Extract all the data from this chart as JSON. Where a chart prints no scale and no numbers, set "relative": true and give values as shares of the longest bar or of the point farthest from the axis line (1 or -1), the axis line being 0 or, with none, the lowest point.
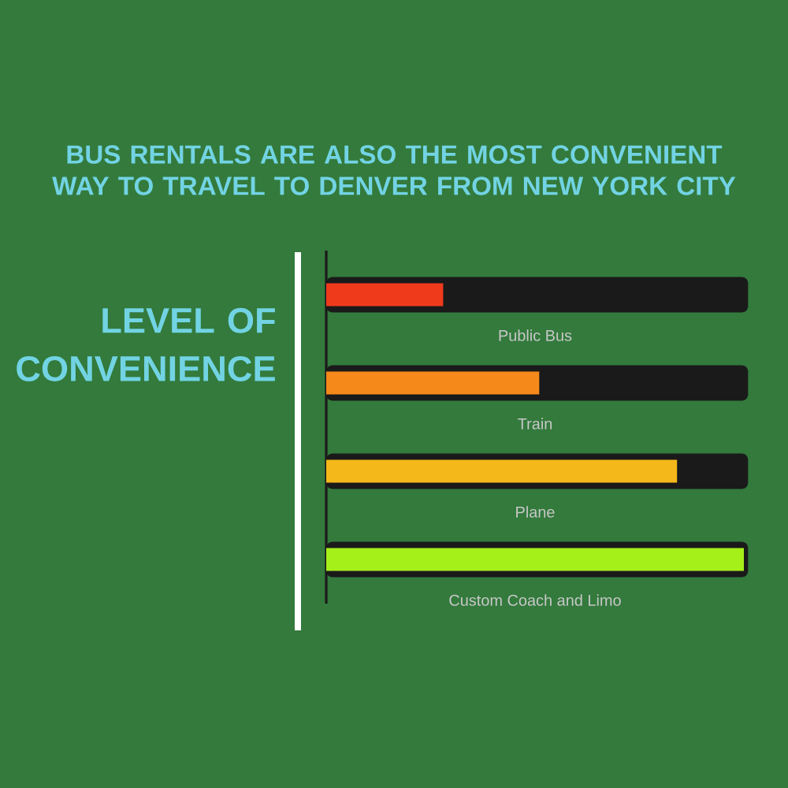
{
  "chart_data": {
    "type": "bar",
    "orientation": "horizontal",
    "relative": true,
    "title": "BUS RENTALS ARE ALSO THE MOST CONVENIENT WAY TO TRAVEL TO DENVER FROM NEW YORK CITY",
    "ylabel": "LEVEL OF CONVENIENCE",
    "categories": [
      "Public Bus",
      "Train",
      "Plane",
      "Custom Coach and Limo"
    ],
    "values": [
      0.28,
      0.51,
      0.84,
      1.0
    ],
    "colors": [
      "#f03a1c",
      "#f58a1a",
      "#f5b81a",
      "#a6f01a"
    ]
  }
}
